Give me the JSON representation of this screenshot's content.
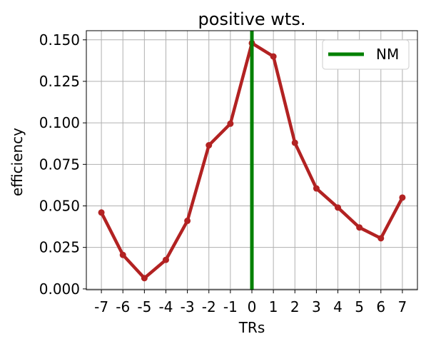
{
  "chart_data": {
    "type": "line",
    "title": "positive wts.",
    "xlabel": "TRs",
    "ylabel": "efficiency",
    "x": [
      -7,
      -6,
      -5,
      -4,
      -3,
      -2,
      -1,
      0,
      1,
      2,
      3,
      4,
      5,
      6,
      7
    ],
    "x_tick_labels": [
      "-7",
      "-6",
      "-5",
      "-4",
      "-3",
      "-2",
      "-1",
      "0",
      "1",
      "2",
      "3",
      "4",
      "5",
      "6",
      "7"
    ],
    "xlim": [
      -7.7,
      7.7
    ],
    "ylim": [
      -0.0005,
      0.1555
    ],
    "y_ticks": [
      0.0,
      0.025,
      0.05,
      0.075,
      0.1,
      0.125,
      0.15
    ],
    "y_tick_labels": [
      "0.000",
      "0.025",
      "0.050",
      "0.075",
      "0.100",
      "0.125",
      "0.150"
    ],
    "grid": true,
    "series": [
      {
        "values": [
          0.046,
          0.0205,
          0.0065,
          0.0175,
          0.041,
          0.0865,
          0.0995,
          0.148,
          0.14,
          0.088,
          0.0605,
          0.049,
          0.037,
          0.0305,
          0.055
        ],
        "color": "#b22222",
        "marker": "circle"
      }
    ],
    "vline": {
      "x": 0,
      "name": "NM",
      "color": "#008000"
    },
    "legend": {
      "position": "top-right",
      "entries": [
        "NM"
      ]
    }
  }
}
